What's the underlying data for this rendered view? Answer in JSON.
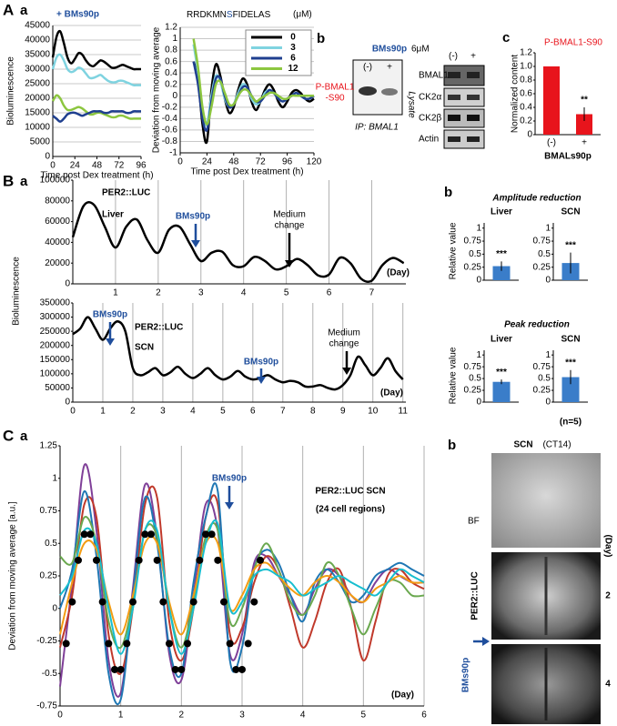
{
  "chart_data": [
    {
      "type": "line",
      "title": "+ BMs90p",
      "ylabel": "Bioluminescence",
      "xlabel": "Time post Dex treatment (h)",
      "x": [
        0,
        4,
        8,
        12,
        16,
        20,
        24,
        28,
        32,
        36,
        40,
        44,
        48,
        52,
        56,
        60,
        64,
        68,
        72,
        76,
        80,
        84,
        88,
        92,
        96
      ],
      "xlim": [
        0,
        96
      ],
      "xticks": [
        0,
        24,
        48,
        72,
        96
      ],
      "ylim": [
        0,
        45000
      ],
      "yticks": [
        0,
        5000,
        10000,
        15000,
        20000,
        25000,
        30000,
        35000,
        40000,
        45000
      ],
      "grid": "y",
      "series": [
        {
          "color": "#000000",
          "values": [
            34000,
            41000,
            43000,
            39000,
            34000,
            32000,
            33500,
            35500,
            35000,
            33000,
            31500,
            31000,
            32000,
            33000,
            32500,
            31500,
            30500,
            30500,
            31000,
            31500,
            31000,
            30500,
            30000,
            30000,
            30000
          ]
        },
        {
          "color": "#7fd3e0",
          "values": [
            30000,
            34000,
            35000,
            33000,
            30000,
            29000,
            29500,
            30500,
            30000,
            28500,
            27000,
            27000,
            27500,
            28000,
            27000,
            26000,
            25500,
            25500,
            26000,
            26000,
            25500,
            25000,
            24500,
            24500,
            24500
          ]
        },
        {
          "color": "#8cc63f",
          "values": [
            19000,
            21000,
            20000,
            17500,
            16000,
            16000,
            16500,
            17000,
            16500,
            15500,
            14500,
            14500,
            15000,
            15000,
            14500,
            14000,
            13500,
            13500,
            14000,
            14000,
            13500,
            13000,
            13000,
            13000,
            13000
          ]
        },
        {
          "color": "#1f3f8f",
          "values": [
            14000,
            13000,
            12000,
            13000,
            14500,
            15000,
            15000,
            14500,
            14000,
            14500,
            15000,
            15500,
            15500,
            15500,
            15000,
            15000,
            15500,
            15500,
            15500,
            15500,
            15000,
            15000,
            15500,
            15500,
            15500
          ]
        }
      ]
    },
    {
      "type": "line",
      "title_parts": [
        "RRDKMN",
        "S",
        "FIDELAS"
      ],
      "unit": "(μM)",
      "ylabel": "Deviation from moving average",
      "xlabel": "Time post Dex treatment (h)",
      "x": [
        12,
        16,
        20,
        24,
        28,
        32,
        36,
        40,
        44,
        48,
        52,
        56,
        60,
        64,
        68,
        72,
        76,
        80,
        84,
        88,
        92,
        96,
        100,
        104,
        108,
        112,
        116,
        120
      ],
      "xlim": [
        0,
        120
      ],
      "xticks": [
        0,
        24,
        48,
        72,
        96,
        120
      ],
      "ylim": [
        -1,
        1.2
      ],
      "yticks": [
        -1,
        -0.8,
        -0.6,
        -0.4,
        -0.2,
        0,
        0.2,
        0.4,
        0.6,
        0.8,
        1,
        1.2
      ],
      "grid": "y",
      "series": [
        {
          "name": "0",
          "color": "#000000",
          "values": [
            0.6,
            0.3,
            -0.5,
            -0.8,
            0.1,
            0.55,
            0.35,
            -0.05,
            -0.3,
            -0.2,
            0.1,
            0.3,
            0.2,
            -0.1,
            -0.25,
            -0.1,
            0.1,
            0.2,
            0.1,
            -0.1,
            -0.2,
            -0.1,
            0.05,
            0.1,
            0.05,
            -0.05,
            -0.1,
            -0.05
          ]
        },
        {
          "name": "3",
          "color": "#7fd3e0",
          "values": [
            0.9,
            0.4,
            -0.3,
            -0.5,
            0.0,
            0.35,
            0.25,
            -0.05,
            -0.2,
            -0.15,
            0.05,
            0.2,
            0.15,
            -0.05,
            -0.15,
            -0.1,
            0.05,
            0.1,
            0.05,
            -0.05,
            -0.1,
            -0.05,
            0.0,
            0.05,
            0.0,
            -0.05,
            -0.05,
            0.0
          ]
        },
        {
          "name": "6",
          "color": "#1f3f8f",
          "values": [
            0.6,
            0.2,
            -0.4,
            -0.6,
            -0.1,
            0.3,
            0.3,
            0.0,
            -0.2,
            -0.15,
            0.0,
            0.15,
            0.15,
            0.0,
            -0.1,
            -0.1,
            0.0,
            0.1,
            0.05,
            -0.05,
            -0.1,
            -0.05,
            0.0,
            0.05,
            0.0,
            -0.05,
            -0.05,
            0.0
          ]
        },
        {
          "name": "12",
          "color": "#8cc63f",
          "values": [
            1.0,
            0.5,
            -0.2,
            -0.5,
            -0.2,
            0.2,
            0.25,
            0.05,
            -0.15,
            -0.15,
            0.0,
            0.1,
            0.1,
            0.0,
            -0.1,
            -0.05,
            0.0,
            0.05,
            0.05,
            0.0,
            -0.05,
            -0.05,
            0,
            0,
            0,
            0,
            0,
            0
          ]
        }
      ]
    },
    {
      "type": "bar",
      "title": "P-BMAL1-S90",
      "ylabel": "Normalized content",
      "xlabel": "BMALs90p",
      "categories": [
        "(-)",
        "+"
      ],
      "values": [
        1,
        0.3
      ],
      "errors": [
        0,
        0.1
      ],
      "color": "#e8141c",
      "ylim": [
        0,
        1.2
      ],
      "yticks": [
        0,
        0.2,
        0.4,
        0.6,
        0.8,
        {
          "value": 1,
          "label": "1.0"
        },
        1.2
      ],
      "annotations": [
        "**"
      ]
    },
    {
      "type": "line",
      "ylabel": "Bioluminescence",
      "x": [
        0,
        0.25,
        0.5,
        0.75,
        1,
        1.25,
        1.5,
        1.75,
        2,
        2.25,
        2.5,
        2.75,
        3,
        3.25,
        3.5,
        3.75,
        4,
        4.25,
        4.5,
        4.75,
        5,
        5.25,
        5.5,
        5.75,
        6,
        6.25,
        6.5,
        6.75,
        7,
        7.25,
        7.5,
        7.75
      ],
      "xlim": [
        0,
        7.8
      ],
      "xticks": [
        1,
        2,
        3,
        4,
        5,
        6,
        7
      ],
      "ylim": [
        0,
        100000
      ],
      "yticks": [
        0,
        20000,
        40000,
        60000,
        80000,
        100000
      ],
      "grid": "x",
      "annotations": [
        "PER2::LUC",
        "Liver",
        "BMs90p",
        "Medium",
        "change",
        "(Day)"
      ],
      "series": [
        {
          "color": "#000000",
          "values": [
            45000,
            75000,
            76000,
            55000,
            35000,
            55000,
            62000,
            42000,
            30000,
            52000,
            55000,
            38000,
            22000,
            30000,
            31000,
            18000,
            17000,
            26000,
            22000,
            14000,
            17000,
            24000,
            18000,
            8000,
            9000,
            25000,
            20000,
            5000,
            3000,
            18000,
            25000,
            20000
          ]
        }
      ]
    },
    {
      "type": "line",
      "x": [
        0,
        0.25,
        0.5,
        0.75,
        1,
        1.25,
        1.5,
        1.75,
        2,
        2.25,
        2.5,
        2.75,
        3,
        3.25,
        3.5,
        3.75,
        4,
        4.25,
        4.5,
        4.75,
        5,
        5.25,
        5.5,
        5.75,
        6,
        6.25,
        6.5,
        6.75,
        7,
        7.25,
        7.5,
        7.75,
        8,
        8.25,
        8.5,
        8.75,
        9,
        9.25,
        9.5,
        9.75,
        10,
        10.25,
        10.5,
        10.75,
        11
      ],
      "xlim": [
        0,
        11.1
      ],
      "xticks": [
        0,
        1,
        2,
        3,
        4,
        5,
        6,
        7,
        8,
        9,
        10,
        11
      ],
      "ylim": [
        0,
        350000
      ],
      "yticks": [
        0,
        50000,
        100000,
        150000,
        200000,
        250000,
        300000,
        350000
      ],
      "grid": "x",
      "annotations": [
        "BMs90p",
        "PER2::LUC",
        "SCN",
        "BMs90p",
        "Medium",
        "change",
        "(Day)"
      ],
      "series": [
        {
          "color": "#000000",
          "values": [
            240000,
            260000,
            300000,
            260000,
            220000,
            260000,
            285000,
            250000,
            120000,
            95000,
            105000,
            120000,
            95000,
            105000,
            125000,
            100000,
            85000,
            100000,
            120000,
            95000,
            80000,
            90000,
            110000,
            90000,
            80000,
            85000,
            95000,
            80000,
            70000,
            75000,
            70000,
            55000,
            55000,
            60000,
            50000,
            45000,
            60000,
            95000,
            160000,
            130000,
            95000,
            120000,
            155000,
            110000,
            80000
          ]
        }
      ]
    },
    {
      "type": "bar",
      "title": "Liver",
      "ylabel": "Relative value",
      "values": [
        0.27
      ],
      "errors": [
        0.09
      ],
      "color": "#3a7dc9",
      "ylim": [
        0,
        1.1
      ],
      "yticks": [
        0,
        0.25,
        0.5,
        0.75,
        1
      ],
      "annotations": [
        "***"
      ]
    },
    {
      "type": "bar",
      "title": "SCN",
      "values": [
        0.33
      ],
      "errors": [
        0.2
      ],
      "color": "#3a7dc9",
      "ylim": [
        0,
        1.1
      ],
      "yticks": [
        0,
        0.25,
        0.5,
        0.75,
        1
      ],
      "annotations": [
        "***"
      ]
    },
    {
      "type": "bar",
      "title": "Liver",
      "ylabel": "Relative value",
      "values": [
        0.43
      ],
      "errors": [
        0.05
      ],
      "color": "#3a7dc9",
      "ylim": [
        0,
        1.1
      ],
      "yticks": [
        0,
        0.25,
        0.5,
        0.75,
        1
      ],
      "annotations": [
        "***"
      ]
    },
    {
      "type": "bar",
      "title": "SCN",
      "values": [
        0.53
      ],
      "errors": [
        0.15
      ],
      "color": "#3a7dc9",
      "ylim": [
        0,
        1.1
      ],
      "yticks": [
        0,
        0.25,
        0.5,
        0.75,
        1
      ],
      "annotations": [
        "***"
      ]
    },
    {
      "type": "line",
      "ylabel": "Deviation from moving average [a.u.]",
      "x": [
        0,
        0.2,
        0.4,
        0.6,
        0.8,
        1,
        1.2,
        1.4,
        1.6,
        1.8,
        2,
        2.2,
        2.4,
        2.6,
        2.8,
        3,
        3.2,
        3.4,
        3.6,
        3.8,
        4,
        4.2,
        4.4,
        4.6,
        4.8,
        5,
        5.2,
        5.4,
        5.6,
        5.8,
        6
      ],
      "xlim": [
        0,
        6
      ],
      "xticks": [
        0,
        1,
        2,
        3,
        4,
        5,
        6
      ],
      "ylim": [
        -0.75,
        1.25
      ],
      "yticks": [
        -0.75,
        -0.5,
        -0.25,
        0,
        0.25,
        0.5,
        0.75,
        1,
        1.25
      ],
      "grid": "x",
      "annotations": [
        "BMs90p",
        "PER2::LUC SCN",
        "(24 cell regions)",
        "(Day)"
      ],
      "series": [
        {
          "color": "#7f3f98",
          "values": [
            -0.6,
            0.2,
            1.1,
            0.6,
            -0.4,
            -0.65,
            0.15,
            0.95,
            0.55,
            -0.35,
            -0.55,
            0.1,
            0.8,
            0.6,
            -0.35,
            -0.2,
            0.35,
            0.4,
            0.25,
            0.1,
            -0.05,
            0.15,
            0.3,
            0.25,
            0.1,
            0.05,
            0.2,
            0.3,
            0.25,
            0.2,
            0.2
          ]
        },
        {
          "color": "#c0392b",
          "values": [
            -0.3,
            0.1,
            0.8,
            0.7,
            -0.2,
            -0.5,
            0.0,
            0.8,
            0.85,
            -0.1,
            -0.4,
            0.0,
            0.7,
            0.8,
            -0.2,
            -0.15,
            0.2,
            0.4,
            0.3,
            0.0,
            -0.3,
            -0.1,
            0.2,
            0.3,
            0.0,
            -0.4,
            -0.1,
            0.25,
            0.3,
            0.2,
            0.15
          ]
        },
        {
          "color": "#1f77b4",
          "values": [
            0.0,
            0.3,
            0.9,
            0.4,
            -0.5,
            -0.7,
            0.1,
            0.85,
            0.5,
            -0.3,
            -0.5,
            0.2,
            0.7,
            0.9,
            -0.4,
            -0.3,
            0.3,
            0.45,
            0.35,
            0.1,
            -0.1,
            0.2,
            0.3,
            0.2,
            0.05,
            0.1,
            0.25,
            0.3,
            0.35,
            0.3,
            0.25
          ]
        },
        {
          "color": "#6aa84f",
          "values": [
            0.4,
            0.35,
            0.7,
            0.5,
            -0.1,
            -0.3,
            0.05,
            0.6,
            0.55,
            0.0,
            -0.3,
            0.05,
            0.55,
            0.6,
            -0.1,
            0.0,
            0.3,
            0.5,
            0.3,
            0.05,
            -0.05,
            0.1,
            0.35,
            0.25,
            0.0,
            -0.2,
            0.0,
            0.2,
            0.2,
            0.1,
            0.1
          ]
        },
        {
          "color": "#f39c12",
          "values": [
            -0.2,
            0.2,
            0.5,
            0.45,
            0.05,
            -0.2,
            0.1,
            0.5,
            0.5,
            0.05,
            -0.2,
            0.1,
            0.5,
            0.5,
            0.0,
            0.1,
            0.3,
            0.35,
            0.25,
            0.15,
            0.1,
            0.2,
            0.25,
            0.2,
            0.1,
            0.05,
            0.15,
            0.2,
            0.25,
            0.2,
            0.2
          ]
        },
        {
          "color": "#17becf",
          "values": [
            0.1,
            0.25,
            0.6,
            0.5,
            0.0,
            -0.35,
            0.0,
            0.6,
            0.6,
            0.0,
            -0.35,
            0.0,
            0.5,
            0.65,
            0.0,
            0.05,
            0.25,
            0.3,
            0.25,
            0.2,
            0.1,
            0.15,
            0.2,
            0.25,
            0.2,
            0.15,
            0.1,
            0.2,
            0.3,
            0.25,
            0.2
          ]
        },
        {
          "color": "#000000",
          "marker": "dots",
          "x": [
            0.1,
            0.2,
            0.3,
            0.4,
            0.5,
            0.6,
            0.7,
            0.8,
            0.9,
            1,
            1.1,
            1.2,
            1.3,
            1.4,
            1.5,
            1.6,
            1.7,
            1.8,
            1.9,
            2,
            2.1,
            2.2,
            2.3,
            2.4,
            2.5,
            2.6,
            2.7,
            2.8,
            2.9,
            3,
            3.1,
            3.2,
            3.3
          ],
          "values": [
            -0.27,
            0.05,
            0.37,
            0.57,
            0.57,
            0.37,
            0.05,
            -0.27,
            -0.47,
            -0.47,
            -0.27,
            0.05,
            0.37,
            0.57,
            0.57,
            0.37,
            0.05,
            -0.27,
            -0.47,
            -0.47,
            -0.27,
            0.05,
            0.37,
            0.57,
            0.57,
            0.37,
            0.05,
            -0.27,
            -0.47,
            -0.47,
            -0.27,
            0.05,
            0.37
          ]
        }
      ]
    }
  ],
  "panel_labels": [
    "A",
    "a",
    "b",
    "c",
    "B",
    "a",
    "b",
    "C",
    "a",
    "b"
  ],
  "groups": {
    "amplitude": "Amplitude reduction",
    "peak": "Peak reduction",
    "n": "(n=5)"
  },
  "blot": {
    "drug": "BMs90p",
    "dose": "6μM",
    "minus": "(-)",
    "plus": "+",
    "target": [
      "P-BMAL1",
      "-S90"
    ],
    "ip": "IP: BMAL1",
    "lysate": "Lysate",
    "proteins": [
      "BMAL1",
      "CK2α",
      "CK2β",
      "Actin"
    ]
  },
  "images": {
    "title": "SCN",
    "subtitle": "(CT14)",
    "bf": "BF",
    "reporter": "PER2::LUC",
    "day_unit": "(Day)",
    "days": [
      "2",
      "4"
    ],
    "drug": "BMs90p"
  }
}
